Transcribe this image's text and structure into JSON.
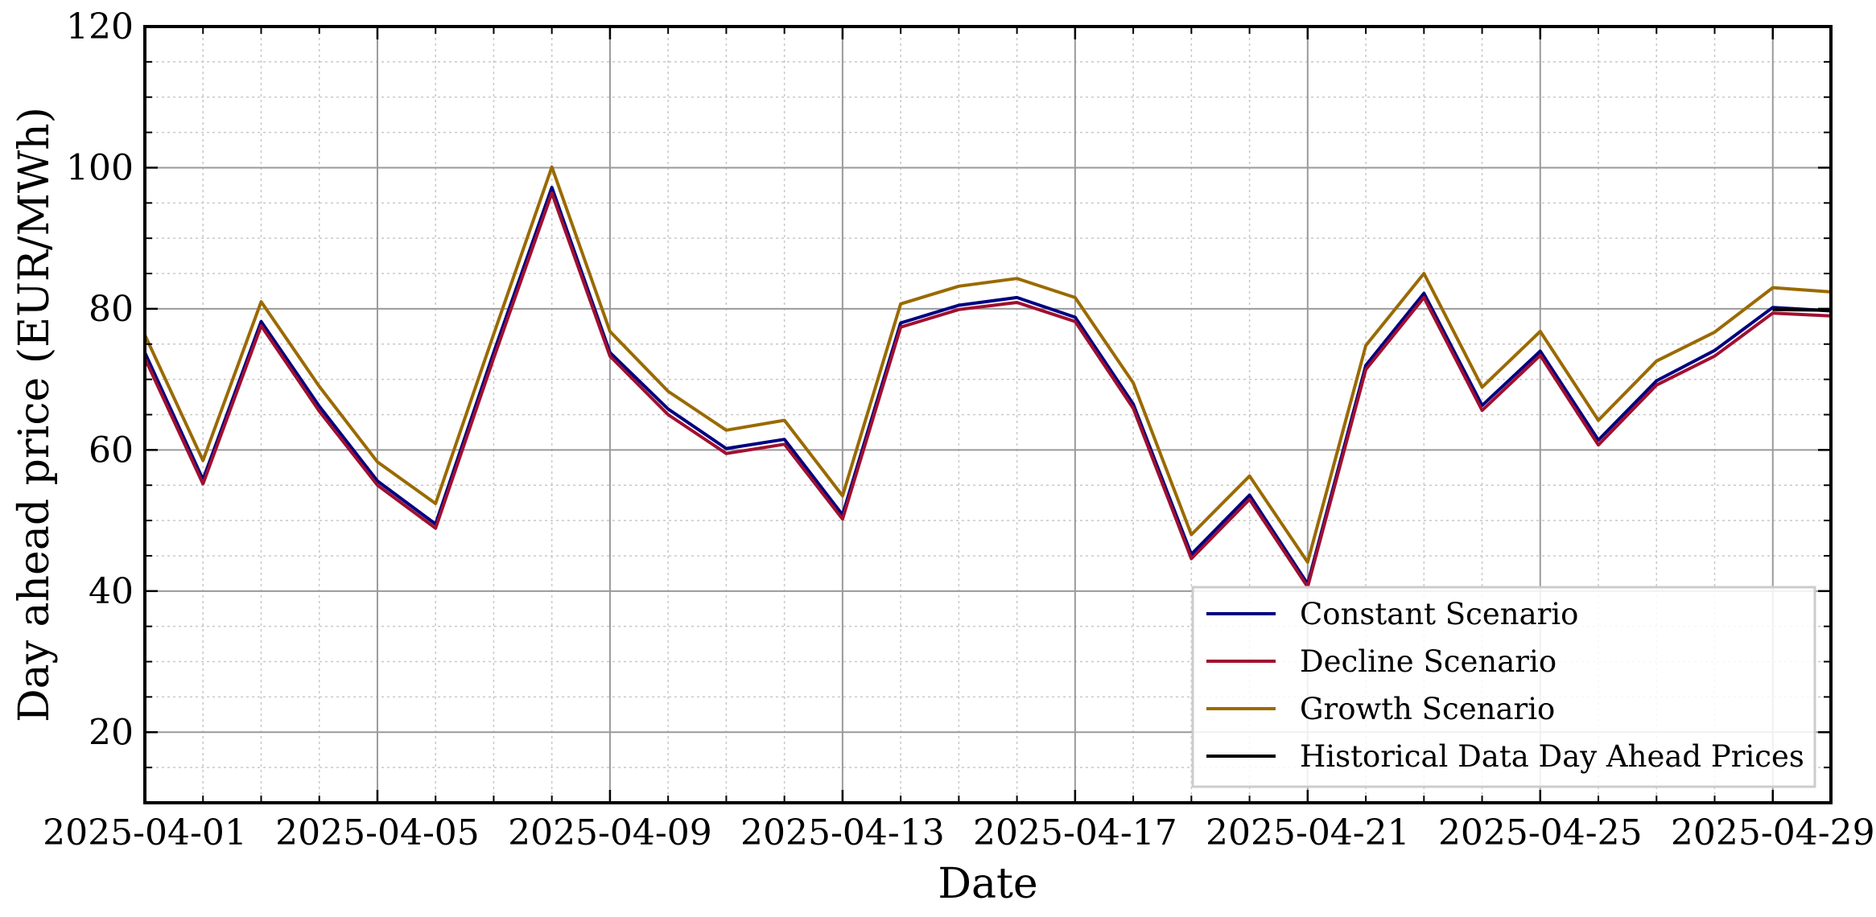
{
  "chart_data": {
    "type": "line",
    "title": "",
    "xlabel": "Date",
    "ylabel": "Day ahead price (EUR/MWh)",
    "ylim": [
      10,
      120
    ],
    "xlim": [
      "2025-04-01",
      "2025-04-30"
    ],
    "y_ticks": [
      20,
      40,
      60,
      80,
      100,
      120
    ],
    "x_ticks": [
      "2025-04-01",
      "2025-04-05",
      "2025-04-09",
      "2025-04-13",
      "2025-04-17",
      "2025-04-21",
      "2025-04-25",
      "2025-04-29"
    ],
    "grid": true,
    "legend_position": "lower-right",
    "x": [
      "2025-04-01",
      "2025-04-02",
      "2025-04-03",
      "2025-04-04",
      "2025-04-05",
      "2025-04-06",
      "2025-04-07",
      "2025-04-08",
      "2025-04-09",
      "2025-04-10",
      "2025-04-11",
      "2025-04-12",
      "2025-04-13",
      "2025-04-14",
      "2025-04-15",
      "2025-04-16",
      "2025-04-17",
      "2025-04-18",
      "2025-04-19",
      "2025-04-20",
      "2025-04-21",
      "2025-04-22",
      "2025-04-23",
      "2025-04-24",
      "2025-04-25",
      "2025-04-26",
      "2025-04-27",
      "2025-04-28",
      "2025-04-29",
      "2025-04-30"
    ],
    "series": [
      {
        "name": "Constant Scenario",
        "color": "#000080",
        "values": [
          73.8,
          55.8,
          78.2,
          66.2,
          55.6,
          49.5,
          73.8,
          97.2,
          73.8,
          65.8,
          60.2,
          61.5,
          50.8,
          78.0,
          80.5,
          81.6,
          78.8,
          66.5,
          45.2,
          53.6,
          41.0,
          72.0,
          82.2,
          66.3,
          74.0,
          61.4,
          69.8,
          74.1,
          80.2,
          79.7
        ]
      },
      {
        "name": "Decline Scenario",
        "color": "#a01030",
        "values": [
          73.0,
          55.2,
          77.6,
          65.5,
          55.0,
          48.9,
          73.0,
          96.4,
          73.3,
          65.0,
          59.5,
          60.8,
          50.2,
          77.4,
          79.9,
          80.9,
          78.2,
          65.9,
          44.6,
          53.0,
          40.6,
          71.4,
          81.6,
          65.6,
          73.4,
          60.7,
          69.2,
          73.3,
          79.4,
          79.0
        ]
      },
      {
        "name": "Growth Scenario",
        "color": "#9a6a00",
        "values": [
          76.3,
          58.5,
          81.0,
          69.0,
          58.3,
          52.4,
          76.4,
          100.1,
          76.8,
          68.3,
          62.8,
          64.2,
          53.5,
          80.7,
          83.2,
          84.3,
          81.6,
          69.5,
          48.0,
          56.3,
          44.1,
          74.8,
          85.0,
          68.9,
          76.8,
          64.2,
          72.6,
          76.7,
          83.0,
          82.4
        ]
      },
      {
        "name": "Historical Data Day Ahead Prices",
        "color": "#000000",
        "values": [
          null,
          null,
          null,
          null,
          null,
          null,
          null,
          null,
          null,
          null,
          null,
          null,
          null,
          null,
          null,
          null,
          null,
          null,
          null,
          null,
          null,
          null,
          null,
          null,
          null,
          null,
          null,
          null,
          79.9,
          79.8
        ]
      }
    ]
  }
}
